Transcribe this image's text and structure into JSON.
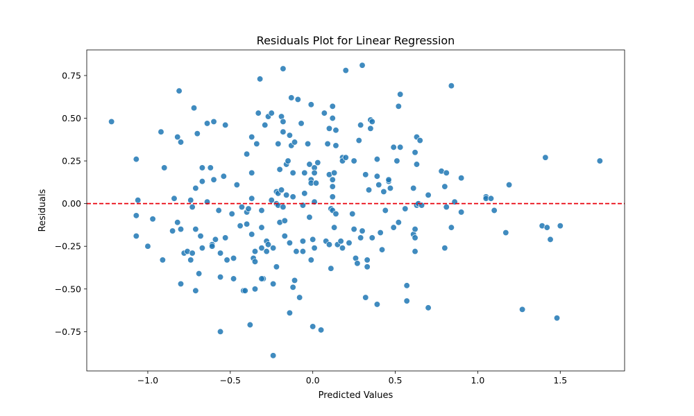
{
  "chart_data": {
    "type": "scatter",
    "title": "Residuals Plot for Linear Regression",
    "xlabel": "Predicted Values",
    "ylabel": "Residuals",
    "xlim": [
      -1.37,
      1.89
    ],
    "ylim": [
      -0.98,
      0.9
    ],
    "xticks": [
      -1.0,
      -0.5,
      0.0,
      0.5,
      1.0,
      1.5
    ],
    "xtick_labels": [
      "−1.0",
      "−0.5",
      "0.0",
      "0.5",
      "1.0",
      "1.5"
    ],
    "yticks": [
      -0.75,
      -0.5,
      -0.25,
      0.0,
      0.25,
      0.5,
      0.75
    ],
    "ytick_labels": [
      "−0.75",
      "−0.50",
      "−0.25",
      "0.00",
      "0.25",
      "0.50",
      "0.75"
    ],
    "grid": false,
    "reference_line": {
      "y": 0,
      "color": "#e8000b",
      "style": "dashed"
    },
    "point_color": "#1f77b4",
    "points": [
      [
        -1.22,
        0.48
      ],
      [
        -1.07,
        0.26
      ],
      [
        -1.06,
        0.02
      ],
      [
        -1.07,
        -0.07
      ],
      [
        -1.07,
        -0.19
      ],
      [
        -1.0,
        -0.25
      ],
      [
        -0.97,
        -0.09
      ],
      [
        -0.92,
        0.42
      ],
      [
        -0.91,
        -0.33
      ],
      [
        -0.9,
        0.21
      ],
      [
        -0.84,
        0.03
      ],
      [
        -0.85,
        -0.16
      ],
      [
        -0.82,
        0.39
      ],
      [
        -0.82,
        -0.11
      ],
      [
        -0.81,
        0.66
      ],
      [
        -0.8,
        0.36
      ],
      [
        -0.8,
        -0.15
      ],
      [
        -0.8,
        -0.47
      ],
      [
        -0.78,
        -0.29
      ],
      [
        -0.76,
        -0.28
      ],
      [
        -0.74,
        0.02
      ],
      [
        -0.73,
        -0.02
      ],
      [
        -0.73,
        -0.29
      ],
      [
        -0.74,
        -0.33
      ],
      [
        -0.72,
        0.56
      ],
      [
        -0.71,
        0.09
      ],
      [
        -0.71,
        -0.15
      ],
      [
        -0.71,
        -0.51
      ],
      [
        -0.7,
        0.41
      ],
      [
        -0.69,
        -0.41
      ],
      [
        -0.68,
        -0.19
      ],
      [
        -0.67,
        0.13
      ],
      [
        -0.67,
        0.21
      ],
      [
        -0.67,
        -0.26
      ],
      [
        -0.64,
        0.47
      ],
      [
        -0.64,
        0.01
      ],
      [
        -0.62,
        0.21
      ],
      [
        -0.61,
        -0.24
      ],
      [
        -0.61,
        -0.25
      ],
      [
        -0.6,
        0.48
      ],
      [
        -0.6,
        0.14
      ],
      [
        -0.59,
        -0.21
      ],
      [
        -0.57,
        -0.04
      ],
      [
        -0.56,
        -0.29
      ],
      [
        -0.56,
        -0.43
      ],
      [
        -0.56,
        -0.75
      ],
      [
        -0.54,
        0.16
      ],
      [
        -0.53,
        0.46
      ],
      [
        -0.53,
        -0.2
      ],
      [
        -0.52,
        -0.33
      ],
      [
        -0.49,
        -0.06
      ],
      [
        -0.48,
        -0.32
      ],
      [
        -0.48,
        -0.44
      ],
      [
        -0.46,
        0.11
      ],
      [
        -0.44,
        -0.13
      ],
      [
        -0.43,
        -0.02
      ],
      [
        -0.42,
        -0.51
      ],
      [
        -0.41,
        -0.51
      ],
      [
        -0.4,
        0.29
      ],
      [
        -0.4,
        -0.05
      ],
      [
        -0.4,
        -0.12
      ],
      [
        -0.39,
        -0.03
      ],
      [
        -0.38,
        -0.71
      ],
      [
        -0.37,
        0.39
      ],
      [
        -0.37,
        0.18
      ],
      [
        -0.37,
        0.03
      ],
      [
        -0.37,
        -0.18
      ],
      [
        -0.36,
        -0.32
      ],
      [
        -0.35,
        -0.28
      ],
      [
        -0.35,
        -0.34
      ],
      [
        -0.35,
        -0.5
      ],
      [
        -0.34,
        0.35
      ],
      [
        -0.33,
        0.53
      ],
      [
        -0.32,
        0.73
      ],
      [
        -0.31,
        -0.04
      ],
      [
        -0.31,
        -0.14
      ],
      [
        -0.31,
        -0.26
      ],
      [
        -0.3,
        -0.44
      ],
      [
        -0.31,
        -0.44
      ],
      [
        -0.29,
        0.46
      ],
      [
        -0.28,
        -0.22
      ],
      [
        -0.28,
        -0.28
      ],
      [
        -0.27,
        0.51
      ],
      [
        -0.27,
        -0.24
      ],
      [
        -0.25,
        0.53
      ],
      [
        -0.25,
        0.02
      ],
      [
        -0.24,
        -0.26
      ],
      [
        -0.24,
        -0.47
      ],
      [
        -0.24,
        -0.89
      ],
      [
        -0.22,
        0.07
      ],
      [
        -0.22,
        0.0
      ],
      [
        -0.22,
        -0.37
      ],
      [
        -0.21,
        0.35
      ],
      [
        -0.21,
        0.06
      ],
      [
        -0.21,
        -0.01
      ],
      [
        -0.2,
        0.2
      ],
      [
        -0.2,
        -0.11
      ],
      [
        -0.19,
        0.51
      ],
      [
        -0.19,
        0.08
      ],
      [
        -0.18,
        0.79
      ],
      [
        -0.18,
        0.48
      ],
      [
        -0.18,
        0.42
      ],
      [
        -0.18,
        -0.02
      ],
      [
        -0.17,
        -0.1
      ],
      [
        -0.17,
        -0.19
      ],
      [
        -0.16,
        0.23
      ],
      [
        -0.16,
        0.05
      ],
      [
        -0.15,
        0.25
      ],
      [
        -0.14,
        0.4
      ],
      [
        -0.14,
        -0.23
      ],
      [
        -0.14,
        -0.64
      ],
      [
        -0.13,
        0.62
      ],
      [
        -0.13,
        0.34
      ],
      [
        -0.12,
        0.18
      ],
      [
        -0.12,
        0.04
      ],
      [
        -0.12,
        -0.49
      ],
      [
        -0.11,
        0.36
      ],
      [
        -0.11,
        -0.45
      ],
      [
        -0.1,
        -0.28
      ],
      [
        -0.09,
        0.61
      ],
      [
        -0.08,
        -0.55
      ],
      [
        -0.07,
        0.47
      ],
      [
        -0.06,
        -0.01
      ],
      [
        -0.06,
        -0.28
      ],
      [
        -0.06,
        -0.22
      ],
      [
        -0.05,
        0.18
      ],
      [
        -0.05,
        0.06
      ],
      [
        -0.03,
        0.35
      ],
      [
        -0.02,
        0.23
      ],
      [
        -0.02,
        -0.08
      ],
      [
        -0.01,
        0.58
      ],
      [
        -0.01,
        0.14
      ],
      [
        -0.01,
        0.12
      ],
      [
        -0.01,
        -0.33
      ],
      [
        0.0,
        -0.21
      ],
      [
        0.0,
        -0.72
      ],
      [
        0.01,
        0.21
      ],
      [
        0.01,
        0.18
      ],
      [
        0.01,
        0.01
      ],
      [
        0.01,
        -0.26
      ],
      [
        0.02,
        0.12
      ],
      [
        0.03,
        0.24
      ],
      [
        0.05,
        -0.74
      ],
      [
        0.07,
        0.53
      ],
      [
        0.08,
        -0.22
      ],
      [
        0.09,
        0.35
      ],
      [
        0.1,
        0.44
      ],
      [
        0.1,
        0.17
      ],
      [
        0.1,
        -0.24
      ],
      [
        0.11,
        -0.03
      ],
      [
        0.11,
        -0.38
      ],
      [
        0.12,
        0.57
      ],
      [
        0.12,
        0.5
      ],
      [
        0.12,
        0.14
      ],
      [
        0.12,
        0.1
      ],
      [
        0.12,
        0.04
      ],
      [
        0.12,
        -0.04
      ],
      [
        0.13,
        0.18
      ],
      [
        0.13,
        -0.14
      ],
      [
        0.14,
        0.43
      ],
      [
        0.14,
        0.34
      ],
      [
        0.14,
        -0.06
      ],
      [
        0.15,
        -0.24
      ],
      [
        0.17,
        -0.22
      ],
      [
        0.18,
        0.27
      ],
      [
        0.18,
        0.25
      ],
      [
        0.18,
        -0.26
      ],
      [
        0.2,
        0.78
      ],
      [
        0.2,
        0.27
      ],
      [
        0.22,
        -0.23
      ],
      [
        0.24,
        -0.06
      ],
      [
        0.25,
        0.25
      ],
      [
        0.25,
        -0.15
      ],
      [
        0.26,
        -0.32
      ],
      [
        0.27,
        -0.35
      ],
      [
        0.28,
        0.37
      ],
      [
        0.29,
        0.46
      ],
      [
        0.29,
        -0.2
      ],
      [
        0.3,
        0.81
      ],
      [
        0.3,
        -0.16
      ],
      [
        0.32,
        0.17
      ],
      [
        0.32,
        -0.55
      ],
      [
        0.33,
        -0.33
      ],
      [
        0.33,
        -0.37
      ],
      [
        0.34,
        0.08
      ],
      [
        0.35,
        0.44
      ],
      [
        0.35,
        0.49
      ],
      [
        0.36,
        -0.2
      ],
      [
        0.36,
        0.48
      ],
      [
        0.39,
        0.16
      ],
      [
        0.39,
        0.26
      ],
      [
        0.39,
        -0.59
      ],
      [
        0.4,
        0.11
      ],
      [
        0.41,
        -0.17
      ],
      [
        0.42,
        -0.27
      ],
      [
        0.43,
        0.07
      ],
      [
        0.44,
        -0.04
      ],
      [
        0.46,
        0.13
      ],
      [
        0.46,
        0.14
      ],
      [
        0.47,
        0.09
      ],
      [
        0.49,
        0.33
      ],
      [
        0.49,
        -0.14
      ],
      [
        0.51,
        0.25
      ],
      [
        0.52,
        0.57
      ],
      [
        0.52,
        -0.11
      ],
      [
        0.53,
        0.64
      ],
      [
        0.53,
        0.33
      ],
      [
        0.56,
        -0.03
      ],
      [
        0.57,
        -0.48
      ],
      [
        0.57,
        -0.57
      ],
      [
        0.61,
        0.09
      ],
      [
        0.61,
        -0.18
      ],
      [
        0.62,
        -0.15
      ],
      [
        0.62,
        -0.28
      ],
      [
        0.62,
        -0.2
      ],
      [
        0.63,
        0.39
      ],
      [
        0.62,
        0.3
      ],
      [
        0.63,
        0.23
      ],
      [
        0.63,
        -0.01
      ],
      [
        0.64,
        0.0
      ],
      [
        0.65,
        0.37
      ],
      [
        0.66,
        -0.01
      ],
      [
        0.7,
        0.05
      ],
      [
        0.7,
        -0.61
      ],
      [
        0.78,
        0.19
      ],
      [
        0.8,
        0.1
      ],
      [
        0.8,
        -0.26
      ],
      [
        0.81,
        0.18
      ],
      [
        0.81,
        -0.02
      ],
      [
        0.84,
        0.69
      ],
      [
        0.84,
        -0.14
      ],
      [
        0.86,
        0.01
      ],
      [
        0.9,
        0.15
      ],
      [
        0.9,
        -0.05
      ],
      [
        1.05,
        0.04
      ],
      [
        1.05,
        0.03
      ],
      [
        1.08,
        0.03
      ],
      [
        1.1,
        -0.04
      ],
      [
        1.17,
        -0.17
      ],
      [
        1.19,
        0.11
      ],
      [
        1.27,
        -0.62
      ],
      [
        1.39,
        -0.13
      ],
      [
        1.41,
        0.27
      ],
      [
        1.42,
        -0.14
      ],
      [
        1.44,
        -0.21
      ],
      [
        1.48,
        -0.67
      ],
      [
        1.5,
        -0.13
      ],
      [
        1.74,
        0.25
      ]
    ]
  }
}
